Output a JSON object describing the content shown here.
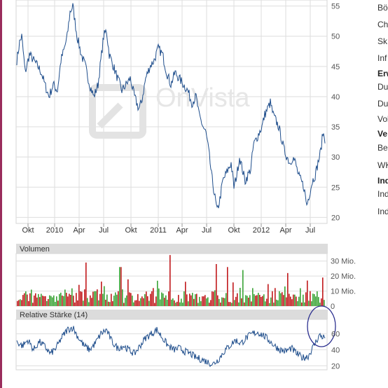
{
  "chart_data": [
    {
      "type": "line",
      "panel": "price",
      "watermark": "OnVista",
      "x_ticks": [
        "Okt",
        "2010",
        "Apr",
        "Jul",
        "Okt",
        "2011",
        "Apr",
        "Jul",
        "Okt",
        "2012",
        "Apr",
        "Jul"
      ],
      "y_ticks": [
        55,
        50,
        45,
        40,
        35,
        30,
        25,
        20
      ],
      "ylim": [
        19,
        56
      ],
      "series_color": "#1f4e8c",
      "anchors": [
        [
          0,
          46
        ],
        [
          4,
          49
        ],
        [
          7,
          50
        ],
        [
          12,
          44
        ],
        [
          18,
          47
        ],
        [
          24,
          46
        ],
        [
          30,
          45
        ],
        [
          35,
          44
        ],
        [
          40,
          42
        ],
        [
          46,
          40
        ],
        [
          52,
          42
        ],
        [
          58,
          41
        ],
        [
          63,
          46
        ],
        [
          68,
          48
        ],
        [
          72,
          50
        ],
        [
          76,
          54
        ],
        [
          80,
          55
        ],
        [
          86,
          50
        ],
        [
          92,
          47
        ],
        [
          98,
          45
        ],
        [
          104,
          42
        ],
        [
          110,
          40
        ],
        [
          116,
          42
        ],
        [
          120,
          46
        ],
        [
          124,
          50
        ],
        [
          128,
          51
        ],
        [
          132,
          47
        ],
        [
          138,
          45
        ],
        [
          144,
          43
        ],
        [
          150,
          41
        ],
        [
          156,
          42
        ],
        [
          162,
          43
        ],
        [
          168,
          40
        ],
        [
          174,
          38
        ],
        [
          178,
          39
        ],
        [
          184,
          43
        ],
        [
          190,
          45
        ],
        [
          196,
          46
        ],
        [
          202,
          48
        ],
        [
          208,
          47
        ],
        [
          214,
          44
        ],
        [
          220,
          42
        ],
        [
          226,
          44
        ],
        [
          232,
          43
        ],
        [
          238,
          42
        ],
        [
          244,
          41
        ],
        [
          250,
          39
        ],
        [
          256,
          40
        ],
        [
          260,
          37
        ],
        [
          266,
          35
        ],
        [
          270,
          34
        ],
        [
          274,
          31
        ],
        [
          278,
          27
        ],
        [
          282,
          24
        ],
        [
          286,
          21
        ],
        [
          290,
          23
        ],
        [
          294,
          26
        ],
        [
          298,
          27
        ],
        [
          302,
          28
        ],
        [
          306,
          29
        ],
        [
          310,
          25
        ],
        [
          314,
          27
        ],
        [
          318,
          30
        ],
        [
          322,
          28
        ],
        [
          326,
          26
        ],
        [
          330,
          27
        ],
        [
          334,
          28
        ],
        [
          338,
          32
        ],
        [
          342,
          33
        ],
        [
          346,
          34
        ],
        [
          350,
          35
        ],
        [
          354,
          37
        ],
        [
          358,
          38
        ],
        [
          362,
          39
        ],
        [
          366,
          37
        ],
        [
          370,
          36
        ],
        [
          374,
          35
        ],
        [
          378,
          33
        ],
        [
          382,
          31
        ],
        [
          386,
          30
        ],
        [
          390,
          29
        ],
        [
          394,
          30
        ],
        [
          398,
          29
        ],
        [
          402,
          27
        ],
        [
          406,
          26
        ],
        [
          410,
          25
        ],
        [
          414,
          22
        ],
        [
          418,
          24
        ],
        [
          422,
          26
        ],
        [
          426,
          27
        ],
        [
          430,
          29
        ],
        [
          434,
          31
        ],
        [
          437,
          34
        ],
        [
          440,
          33
        ]
      ]
    },
    {
      "type": "bar",
      "panel": "volume",
      "title": "Volumen",
      "y_ticks": [
        "30 Mio.",
        "20 Mio.",
        "10 Mio.",
        "0"
      ],
      "ylim": [
        0,
        35
      ],
      "up_color": "#3aa335",
      "down_color": "#c0181b",
      "spikes": [
        [
          98,
          29
        ],
        [
          147,
          26
        ],
        [
          218,
          34
        ],
        [
          284,
          28
        ],
        [
          300,
          26
        ],
        [
          322,
          24
        ],
        [
          386,
          22
        ],
        [
          414,
          17
        ],
        [
          436,
          19
        ]
      ]
    },
    {
      "type": "line",
      "panel": "rsi",
      "title": "Relative Stärke (14)",
      "y_ticks": [
        60,
        40,
        20
      ],
      "ylim": [
        15,
        78
      ],
      "series_color": "#1f4e8c",
      "anchors": [
        [
          0,
          50
        ],
        [
          8,
          45
        ],
        [
          16,
          52
        ],
        [
          24,
          40
        ],
        [
          32,
          50
        ],
        [
          40,
          44
        ],
        [
          48,
          35
        ],
        [
          56,
          42
        ],
        [
          64,
          55
        ],
        [
          72,
          65
        ],
        [
          80,
          68
        ],
        [
          88,
          55
        ],
        [
          96,
          45
        ],
        [
          104,
          40
        ],
        [
          112,
          48
        ],
        [
          120,
          60
        ],
        [
          128,
          65
        ],
        [
          136,
          50
        ],
        [
          144,
          42
        ],
        [
          152,
          45
        ],
        [
          160,
          40
        ],
        [
          168,
          35
        ],
        [
          176,
          45
        ],
        [
          184,
          55
        ],
        [
          192,
          60
        ],
        [
          200,
          65
        ],
        [
          208,
          55
        ],
        [
          216,
          45
        ],
        [
          224,
          40
        ],
        [
          232,
          42
        ],
        [
          240,
          38
        ],
        [
          248,
          35
        ],
        [
          256,
          30
        ],
        [
          264,
          28
        ],
        [
          272,
          25
        ],
        [
          280,
          22
        ],
        [
          288,
          28
        ],
        [
          296,
          38
        ],
        [
          304,
          45
        ],
        [
          312,
          52
        ],
        [
          320,
          48
        ],
        [
          328,
          55
        ],
        [
          336,
          60
        ],
        [
          344,
          62
        ],
        [
          352,
          58
        ],
        [
          360,
          52
        ],
        [
          368,
          45
        ],
        [
          376,
          40
        ],
        [
          384,
          38
        ],
        [
          392,
          42
        ],
        [
          400,
          35
        ],
        [
          408,
          30
        ],
        [
          416,
          32
        ],
        [
          424,
          45
        ],
        [
          432,
          58
        ],
        [
          440,
          55
        ]
      ],
      "highlight": "circle"
    }
  ],
  "sidebar": {
    "rows": [
      "Bö",
      "Ch",
      "Sk",
      "Inf",
      "Erw",
      "Du",
      "Du",
      "Vol",
      "Ve",
      "Be",
      "WK",
      "Ind",
      "Ind",
      "Ind"
    ]
  }
}
